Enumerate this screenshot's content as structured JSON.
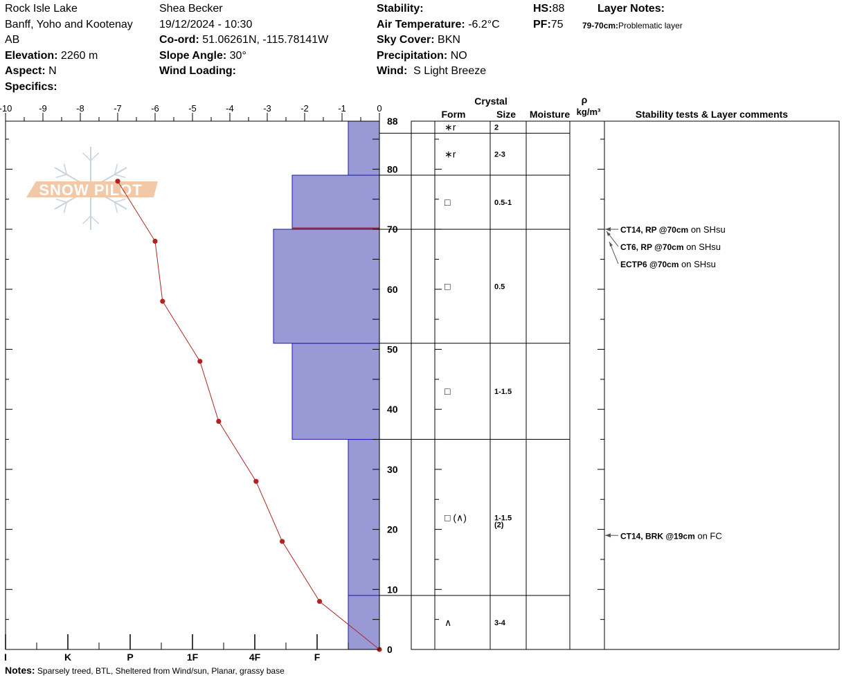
{
  "header": {
    "location": "Rock Isle Lake",
    "region": "Banff, Yoho and Kootenay",
    "province": "AB",
    "elevation_label": "Elevation:",
    "elevation_value": "2260 m",
    "aspect_label": "Aspect:",
    "aspect_value": "N",
    "specifics_label": "Specifics:",
    "observer": "Shea Becker",
    "datetime": "19/12/2024 - 10:30",
    "coord_label": "Co-ord:",
    "coord_value": "51.06261N, -115.78141W",
    "slope_label": "Slope Angle:",
    "slope_value": "30°",
    "wind_loading_label": "Wind Loading:",
    "stability_label": "Stability:",
    "air_temp_label": "Air Temperature:",
    "air_temp_value": "-6.2°C",
    "sky_label": "Sky Cover:",
    "sky_value": "BKN",
    "precip_label": "Precipitation:",
    "precip_value": "NO",
    "wind_label": "Wind:",
    "wind_value": "S Light Breeze",
    "hs_label": "HS:",
    "hs_value": "88",
    "pf_label": "PF:",
    "pf_value": "75",
    "layer_notes_label": "Layer Notes:",
    "layer_note_depth": "79-70cm:",
    "layer_note_text": "Problematic layer"
  },
  "notes": {
    "label": "Notes:",
    "text": "Sparsely treed, BTL, Sheltered from Wind/sun, Planar, grassy base"
  },
  "watermark": "SNOW PILOT",
  "table_headers": {
    "crystal": "Crystal",
    "form": "Form",
    "size": "Size",
    "moisture": "Moisture",
    "rho": "ρ",
    "density_unit": "kg/m³",
    "comments": "Stability tests & Layer comments"
  },
  "colors": {
    "hardness_fill": "#9999d6",
    "hardness_stroke": "#1a1ab3",
    "temperature": "#b22222",
    "weak_layer": "#b22222"
  },
  "chart_data": {
    "type": "snow_profile",
    "temperature_axis": {
      "ticks": [
        "-10",
        "-9",
        "-8",
        "-7",
        "-6",
        "-5",
        "-4",
        "-3",
        "-2",
        "-1",
        "0"
      ],
      "range": [
        -10,
        0
      ]
    },
    "height_axis": {
      "ticks": [
        "0",
        "10",
        "20",
        "30",
        "40",
        "50",
        "60",
        "70",
        "80",
        "88"
      ],
      "range": [
        0,
        88
      ]
    },
    "hardness_axis": {
      "ticks": [
        "I",
        "K",
        "P",
        "1F",
        "4F",
        "F"
      ]
    },
    "temperature_profile": [
      {
        "height": 0,
        "temp": 0
      },
      {
        "height": 8,
        "temp": -1.6
      },
      {
        "height": 18,
        "temp": -2.6
      },
      {
        "height": 28,
        "temp": -3.3
      },
      {
        "height": 38,
        "temp": -4.3
      },
      {
        "height": 48,
        "temp": -4.8
      },
      {
        "height": 58,
        "temp": -5.8
      },
      {
        "height": 68,
        "temp": -6.0
      },
      {
        "height": 78,
        "temp": -7.0
      }
    ],
    "hardness_layers": [
      {
        "bottom": 0,
        "top": 9,
        "hardness": 0.5
      },
      {
        "bottom": 9,
        "top": 35,
        "hardness": 0.5
      },
      {
        "bottom": 35,
        "top": 51,
        "hardness": 1.4
      },
      {
        "bottom": 51,
        "top": 70,
        "hardness": 1.7
      },
      {
        "bottom": 70,
        "top": 79,
        "hardness": 1.4
      },
      {
        "bottom": 79,
        "top": 88,
        "hardness": 0.5
      }
    ],
    "weak_layer_height": 70,
    "layers": [
      {
        "top": 88,
        "bottom": 86,
        "form": "∗r",
        "size": "2"
      },
      {
        "top": 86,
        "bottom": 79,
        "form": "∗r",
        "size": "2-3"
      },
      {
        "top": 79,
        "bottom": 70,
        "form": "□",
        "size": "0.5-1"
      },
      {
        "top": 70,
        "bottom": 51,
        "form": "□",
        "size": "0.5"
      },
      {
        "top": 51,
        "bottom": 35,
        "form": "□",
        "size": "1-1.5"
      },
      {
        "top": 35,
        "bottom": 9,
        "form": "□ (∧)",
        "size": "1-1.5",
        "size2": "(2)"
      },
      {
        "top": 9,
        "bottom": 0,
        "form": "∧",
        "size": "3-4"
      }
    ],
    "stability_tests": [
      {
        "height": 70,
        "label": "CT14, RP @70cm",
        "suffix": " on SHsu",
        "arrow": "direct"
      },
      {
        "height": 70,
        "label": "CT6, RP @70cm",
        "suffix": " on SHsu",
        "arrow": "diag1"
      },
      {
        "height": 70,
        "label": "ECTP6 @70cm",
        "suffix": " on SHsu",
        "arrow": "diag2"
      },
      {
        "height": 19,
        "label": "CT14, BRK @19cm",
        "suffix": "  on FC",
        "arrow": "direct"
      }
    ]
  }
}
